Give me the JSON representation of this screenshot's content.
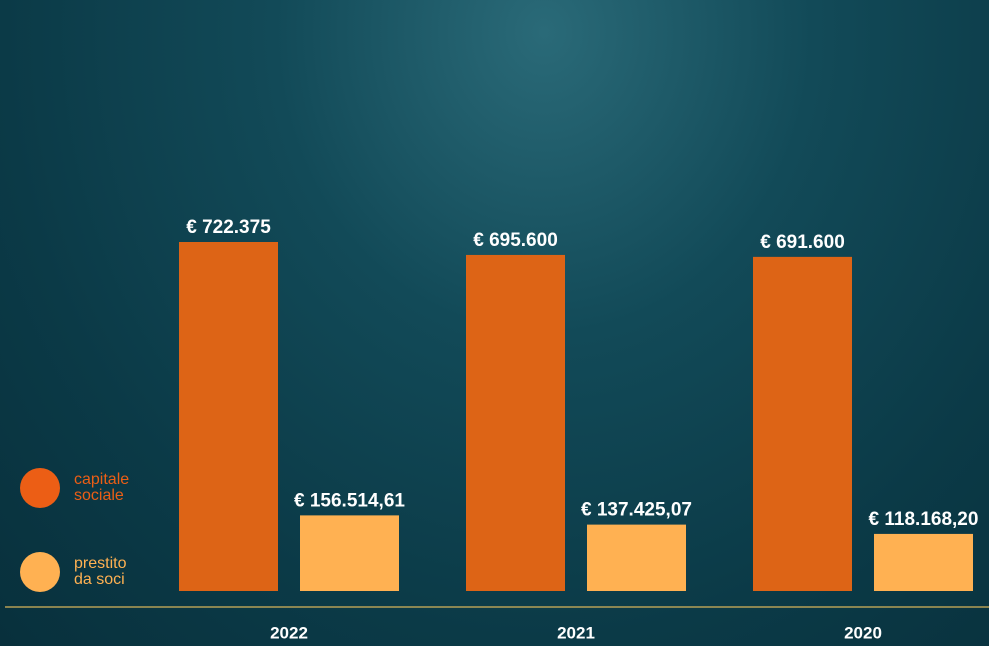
{
  "chart_data": {
    "type": "bar",
    "categories": [
      "2022",
      "2021",
      "2020"
    ],
    "series": [
      {
        "name": "capitale sociale",
        "color": "#dd6416",
        "values": [
          722375,
          695600,
          691600
        ],
        "value_labels": [
          "€ 722.375",
          "€ 695.600",
          "€ 691.600"
        ]
      },
      {
        "name": "prestito da soci",
        "color": "#ffb152",
        "values": [
          156514.61,
          137425.07,
          118168.2
        ],
        "value_labels": [
          "€ 156.514,61",
          "€ 137.425,07",
          "€ 118.168,20"
        ]
      }
    ]
  }
}
